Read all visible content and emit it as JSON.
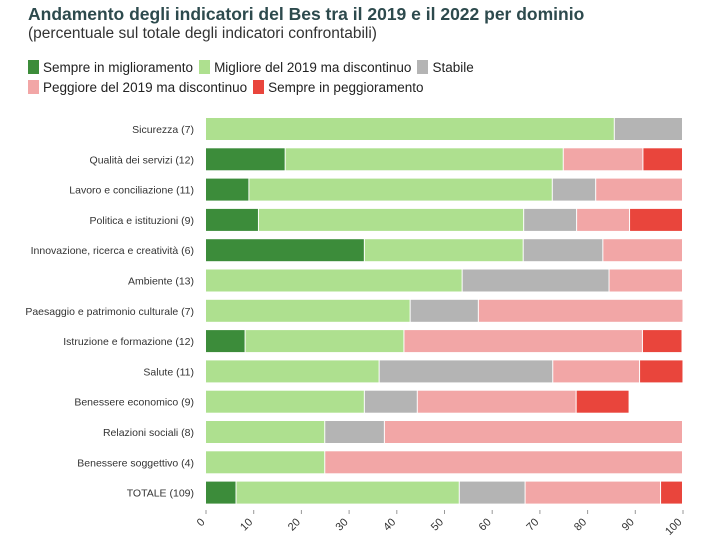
{
  "chart_data": {
    "type": "bar",
    "orientation": "horizontal",
    "stacked": true,
    "title": "Andamento degli indicatori del Bes tra il 2019 e il 2022 per dominio",
    "subtitle": "(percentuale sul totale degli indicatori confrontabili)",
    "xlim": [
      0,
      100
    ],
    "xticks": [
      0,
      10,
      20,
      30,
      40,
      50,
      60,
      70,
      80,
      90,
      100
    ],
    "legend_position": "top-left",
    "categories": [
      "Sicurezza (7)",
      "Qualità dei servizi (12)",
      "Lavoro e conciliazione (11)",
      "Politica e istituzioni (9)",
      "Innovazione, ricerca e creatività (6)",
      "Ambiente (13)",
      "Paesaggio e patrimonio culturale (7)",
      "Istruzione e formazione (12)",
      "Salute (11)",
      "Benessere economico (9)",
      "Relazioni sociali (8)",
      "Benessere soggettivo (4)",
      "TOTALE (109)"
    ],
    "series": [
      {
        "name": "Sempre in miglioramento",
        "color": "#3c8c3a",
        "values": [
          0,
          16.7,
          9.1,
          11.1,
          33.3,
          0,
          0,
          8.3,
          0,
          0,
          0,
          0,
          6.4
        ]
      },
      {
        "name": "Migliore del 2019 ma discontinuo",
        "color": "#aee08f",
        "values": [
          85.7,
          58.3,
          63.6,
          55.6,
          33.3,
          53.8,
          42.9,
          33.3,
          36.4,
          33.3,
          25.0,
          25.0,
          46.8
        ]
      },
      {
        "name": "Stabile",
        "color": "#b4b4b4",
        "values": [
          14.3,
          0,
          9.1,
          11.1,
          16.7,
          30.8,
          14.3,
          0,
          36.4,
          11.1,
          12.5,
          0,
          13.8
        ]
      },
      {
        "name": "Peggiore del 2019 ma discontinuo",
        "color": "#f2a6a6",
        "values": [
          0,
          16.7,
          18.2,
          11.1,
          16.7,
          15.4,
          42.9,
          50.0,
          18.2,
          33.3,
          62.5,
          75.0,
          28.4
        ]
      },
      {
        "name": "Sempre in peggioramento",
        "color": "#e9453c",
        "values": [
          0,
          8.3,
          0,
          11.1,
          0,
          0,
          0,
          8.3,
          9.1,
          11.1,
          0,
          0,
          4.6
        ]
      }
    ]
  }
}
